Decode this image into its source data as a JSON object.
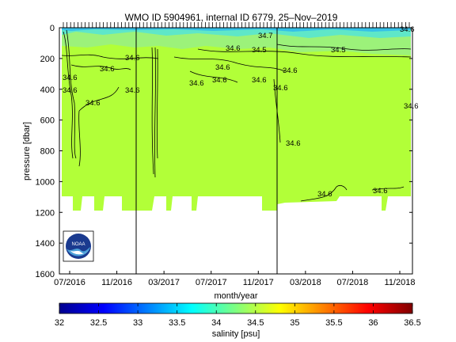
{
  "chart_data": {
    "type": "heatmap",
    "title": "WMO ID 5904961, internal ID 6779, 25–Nov–2019",
    "xlabel": "month/year",
    "ylabel": "pressure [dbar]",
    "x_ticks": [
      "07/2016",
      "11/2016",
      "03/2017",
      "07/2017",
      "11/2017",
      "03/2018",
      "07/2018",
      "11/2018"
    ],
    "y_ticks": [
      0,
      200,
      400,
      600,
      800,
      1000,
      1200,
      1400,
      1600
    ],
    "ylim": [
      1600,
      0
    ],
    "colorbar": {
      "label": "salinity [psu]",
      "ticks": [
        "32",
        "32.5",
        "33",
        "33.5",
        "34",
        "34.5",
        "35",
        "35.5",
        "36",
        "36.5"
      ],
      "range": [
        32,
        36.5
      ],
      "colors": [
        "#00008f",
        "#0000ff",
        "#0080ff",
        "#00ffff",
        "#80ff80",
        "#ffff00",
        "#ff8000",
        "#ff0000",
        "#800000"
      ]
    },
    "contour_labels": [
      "34.6",
      "34.6",
      "34.6",
      "34.6",
      "34.6",
      "34.6",
      "34.6",
      "34.6",
      "34.6",
      "34.6",
      "34.6",
      "34.6",
      "34.6",
      "34.6",
      "34.6",
      "34.6",
      "34.6",
      "34.5",
      "34.6",
      "34.7",
      "34.5"
    ],
    "dominant_value_psu": 34.6,
    "data_depth_limit_dbar": 1100,
    "logo_text": "NOAA"
  }
}
